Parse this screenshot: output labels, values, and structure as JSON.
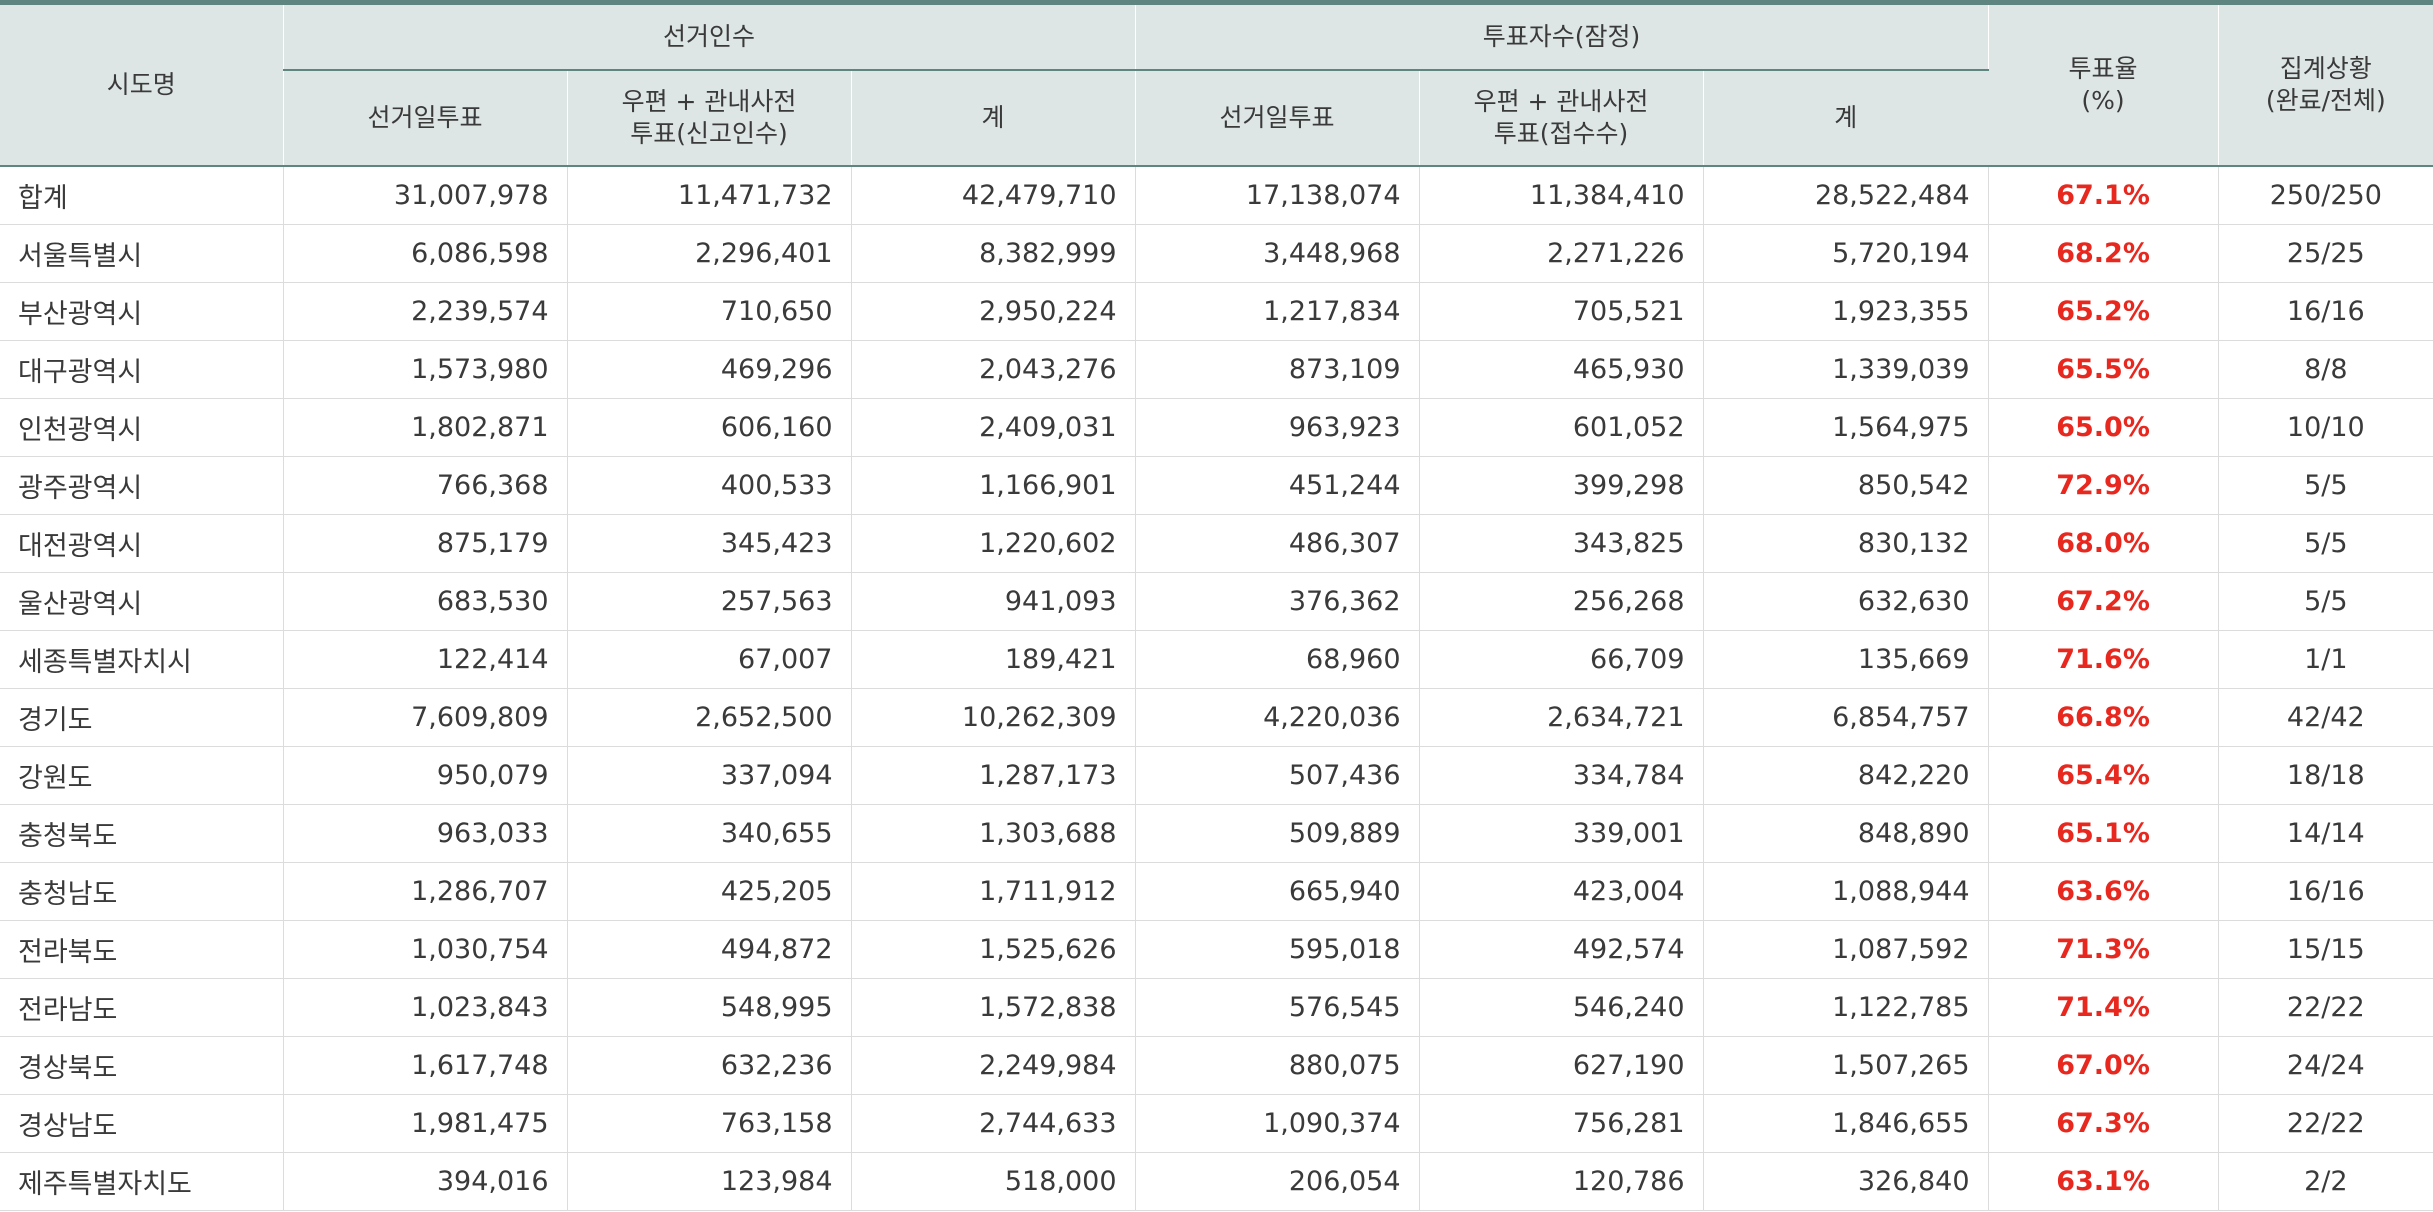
{
  "header": {
    "region": "시도명",
    "group_electors": "선거인수",
    "group_voters": "투표자수(잠정)",
    "rate": "투표율\n(%)",
    "status": "집계상황\n(완료/전체)",
    "sub": [
      "선거일투표",
      "우편 + 관내사전\n투표(신고인수)",
      "계",
      "선거일투표",
      "우편 + 관내사전\n투표(접수수)",
      "계"
    ]
  },
  "rows": [
    {
      "name": "합계",
      "v": [
        "31,007,978",
        "11,471,732",
        "42,479,710",
        "17,138,074",
        "11,384,410",
        "28,522,484"
      ],
      "rate": "67.1%",
      "status": "250/250"
    },
    {
      "name": "서울특별시",
      "v": [
        "6,086,598",
        "2,296,401",
        "8,382,999",
        "3,448,968",
        "2,271,226",
        "5,720,194"
      ],
      "rate": "68.2%",
      "status": "25/25"
    },
    {
      "name": "부산광역시",
      "v": [
        "2,239,574",
        "710,650",
        "2,950,224",
        "1,217,834",
        "705,521",
        "1,923,355"
      ],
      "rate": "65.2%",
      "status": "16/16"
    },
    {
      "name": "대구광역시",
      "v": [
        "1,573,980",
        "469,296",
        "2,043,276",
        "873,109",
        "465,930",
        "1,339,039"
      ],
      "rate": "65.5%",
      "status": "8/8"
    },
    {
      "name": "인천광역시",
      "v": [
        "1,802,871",
        "606,160",
        "2,409,031",
        "963,923",
        "601,052",
        "1,564,975"
      ],
      "rate": "65.0%",
      "status": "10/10"
    },
    {
      "name": "광주광역시",
      "v": [
        "766,368",
        "400,533",
        "1,166,901",
        "451,244",
        "399,298",
        "850,542"
      ],
      "rate": "72.9%",
      "status": "5/5"
    },
    {
      "name": "대전광역시",
      "v": [
        "875,179",
        "345,423",
        "1,220,602",
        "486,307",
        "343,825",
        "830,132"
      ],
      "rate": "68.0%",
      "status": "5/5"
    },
    {
      "name": "울산광역시",
      "v": [
        "683,530",
        "257,563",
        "941,093",
        "376,362",
        "256,268",
        "632,630"
      ],
      "rate": "67.2%",
      "status": "5/5"
    },
    {
      "name": "세종특별자치시",
      "v": [
        "122,414",
        "67,007",
        "189,421",
        "68,960",
        "66,709",
        "135,669"
      ],
      "rate": "71.6%",
      "status": "1/1"
    },
    {
      "name": "경기도",
      "v": [
        "7,609,809",
        "2,652,500",
        "10,262,309",
        "4,220,036",
        "2,634,721",
        "6,854,757"
      ],
      "rate": "66.8%",
      "status": "42/42"
    },
    {
      "name": "강원도",
      "v": [
        "950,079",
        "337,094",
        "1,287,173",
        "507,436",
        "334,784",
        "842,220"
      ],
      "rate": "65.4%",
      "status": "18/18"
    },
    {
      "name": "충청북도",
      "v": [
        "963,033",
        "340,655",
        "1,303,688",
        "509,889",
        "339,001",
        "848,890"
      ],
      "rate": "65.1%",
      "status": "14/14"
    },
    {
      "name": "충청남도",
      "v": [
        "1,286,707",
        "425,205",
        "1,711,912",
        "665,940",
        "423,004",
        "1,088,944"
      ],
      "rate": "63.6%",
      "status": "16/16"
    },
    {
      "name": "전라북도",
      "v": [
        "1,030,754",
        "494,872",
        "1,525,626",
        "595,018",
        "492,574",
        "1,087,592"
      ],
      "rate": "71.3%",
      "status": "15/15"
    },
    {
      "name": "전라남도",
      "v": [
        "1,023,843",
        "548,995",
        "1,572,838",
        "576,545",
        "546,240",
        "1,122,785"
      ],
      "rate": "71.4%",
      "status": "22/22"
    },
    {
      "name": "경상북도",
      "v": [
        "1,617,748",
        "632,236",
        "2,249,984",
        "880,075",
        "627,190",
        "1,507,265"
      ],
      "rate": "67.0%",
      "status": "24/24"
    },
    {
      "name": "경상남도",
      "v": [
        "1,981,475",
        "763,158",
        "2,744,633",
        "1,090,374",
        "756,281",
        "1,846,655"
      ],
      "rate": "67.3%",
      "status": "22/22"
    },
    {
      "name": "제주특별자치도",
      "v": [
        "394,016",
        "123,984",
        "518,000",
        "206,054",
        "120,786",
        "326,840"
      ],
      "rate": "63.1%",
      "status": "2/2"
    }
  ]
}
